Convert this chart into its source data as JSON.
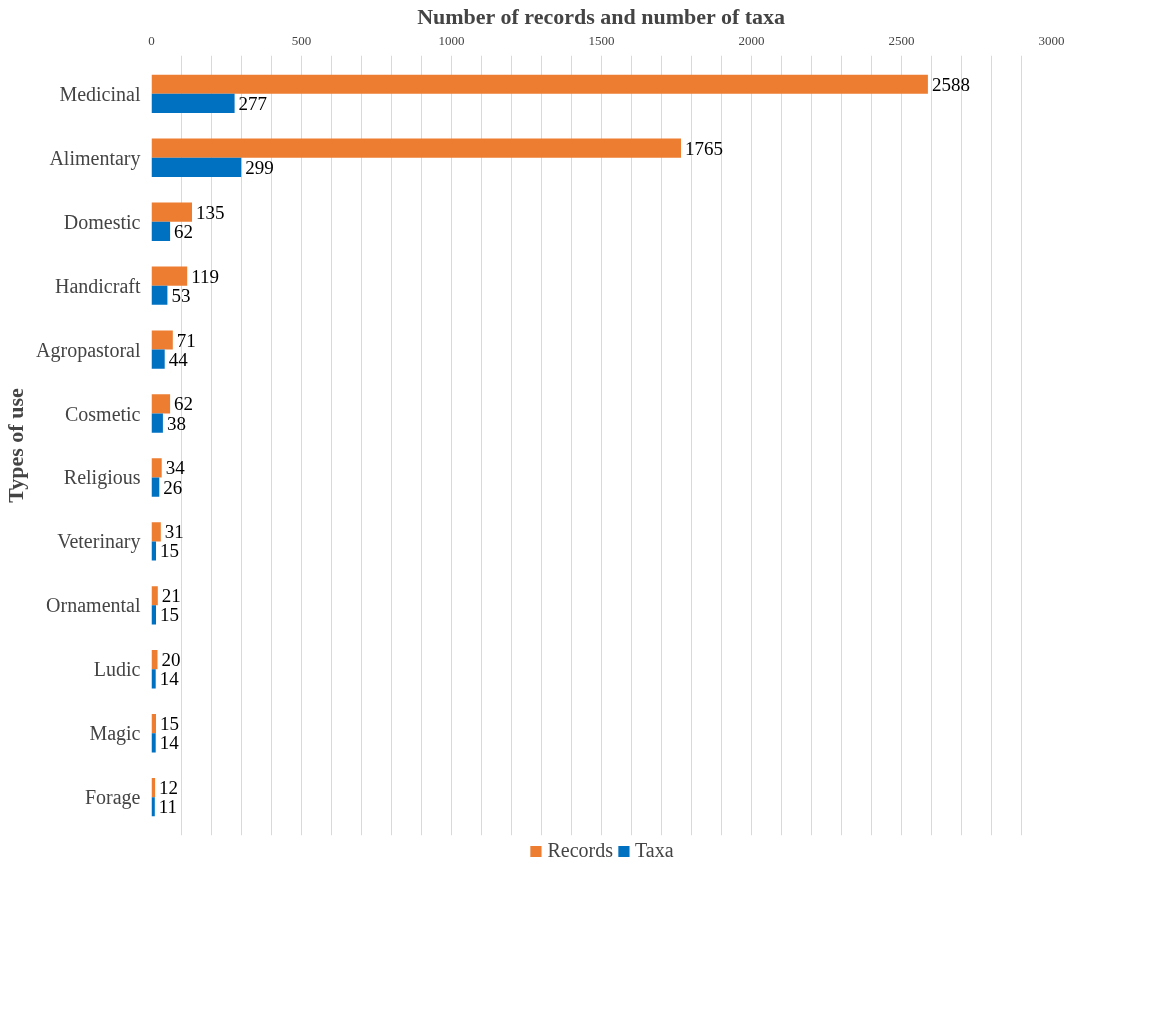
{
  "chart_data": {
    "type": "bar",
    "orientation": "horizontal",
    "xlabel": "Number of records and number of taxa",
    "ylabel": "Types of use",
    "categories": [
      "Medicinal",
      "Alimentary",
      "Domestic",
      "Handicraft",
      "Agropastoral",
      "Cosmetic",
      "Religious",
      "Veterinary",
      "Ornamental",
      "Ludic",
      "Magic",
      "Forage"
    ],
    "series": [
      {
        "name": "Records",
        "color": "#ed7d31",
        "values": [
          2588,
          1765,
          135,
          119,
          71,
          62,
          34,
          31,
          21,
          20,
          15,
          12
        ]
      },
      {
        "name": "Taxa",
        "color": "#0070c0",
        "values": [
          277,
          299,
          62,
          53,
          44,
          38,
          26,
          15,
          15,
          14,
          14,
          11
        ]
      }
    ],
    "xlim": [
      0,
      3000
    ],
    "xticks": [
      0,
      {
        "value": 100,
        "label": null
      },
      {
        "value": 200,
        "label": null
      },
      {
        "value": 300,
        "label": null
      },
      {
        "value": 400,
        "label": null
      },
      500,
      {
        "value": 600,
        "label": null
      },
      {
        "value": 700,
        "label": null
      },
      {
        "value": 800,
        "label": null
      },
      {
        "value": 900,
        "label": null
      },
      1000,
      {
        "value": 1100,
        "label": null
      },
      {
        "value": 1200,
        "label": null
      },
      {
        "value": 1300,
        "label": null
      },
      {
        "value": 1400,
        "label": null
      },
      1500,
      {
        "value": 1600,
        "label": null
      },
      {
        "value": 1700,
        "label": null
      },
      {
        "value": 1800,
        "label": null
      },
      {
        "value": 1900,
        "label": null
      },
      2000,
      {
        "value": 2100,
        "label": null
      },
      {
        "value": 2200,
        "label": null
      },
      {
        "value": 2300,
        "label": null
      },
      {
        "value": 2400,
        "label": null
      },
      2500,
      {
        "value": 2600,
        "label": null
      },
      {
        "value": 2700,
        "label": null
      },
      {
        "value": 2800,
        "label": null
      },
      {
        "value": 2900,
        "label": null
      },
      3000
    ],
    "grid": "x",
    "legend": "bottom",
    "data_labels": true
  }
}
